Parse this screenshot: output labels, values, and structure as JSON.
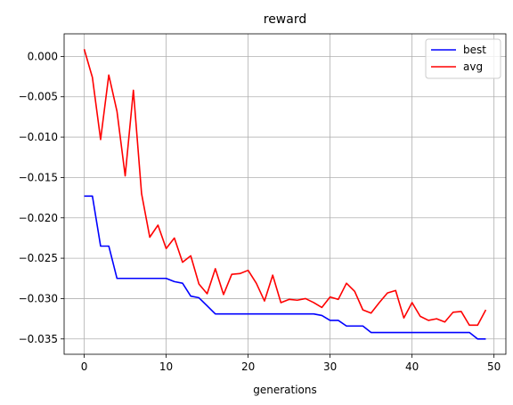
{
  "chart_data": {
    "type": "line",
    "title": "reward",
    "xlabel": "generations",
    "ylabel": "",
    "xlim": [
      -2.45,
      51.45
    ],
    "ylim": [
      -0.0369,
      0.0028
    ],
    "xticks": [
      0,
      10,
      20,
      30,
      40,
      50
    ],
    "yticks": [
      0.0,
      -0.005,
      -0.01,
      -0.015,
      -0.02,
      -0.025,
      -0.03,
      -0.035
    ],
    "ytick_labels": [
      "0.000",
      "−0.005",
      "−0.010",
      "−0.015",
      "−0.020",
      "−0.025",
      "−0.030",
      "−0.035"
    ],
    "grid": true,
    "legend_position": "top-right",
    "x": [
      0,
      1,
      2,
      3,
      4,
      5,
      6,
      7,
      8,
      9,
      10,
      11,
      12,
      13,
      14,
      15,
      16,
      17,
      18,
      19,
      20,
      21,
      22,
      23,
      24,
      25,
      26,
      27,
      28,
      29,
      30,
      31,
      32,
      33,
      34,
      35,
      36,
      37,
      38,
      39,
      40,
      41,
      42,
      43,
      44,
      45,
      46,
      47,
      48,
      49
    ],
    "series": [
      {
        "name": "best",
        "color": "#0000ff",
        "values": [
          -0.0173,
          -0.0173,
          -0.0235,
          -0.0235,
          -0.0275,
          -0.0275,
          -0.0275,
          -0.0275,
          -0.0275,
          -0.0275,
          -0.0275,
          -0.0279,
          -0.0281,
          -0.0297,
          -0.0299,
          -0.0309,
          -0.0319,
          -0.0319,
          -0.0319,
          -0.0319,
          -0.0319,
          -0.0319,
          -0.0319,
          -0.0319,
          -0.0319,
          -0.0319,
          -0.0319,
          -0.0319,
          -0.0319,
          -0.0321,
          -0.0327,
          -0.0327,
          -0.0334,
          -0.0334,
          -0.0334,
          -0.0342,
          -0.0342,
          -0.0342,
          -0.0342,
          -0.0342,
          -0.0342,
          -0.0342,
          -0.0342,
          -0.0342,
          -0.0342,
          -0.0342,
          -0.0342,
          -0.0342,
          -0.035,
          -0.035
        ]
      },
      {
        "name": "avg",
        "color": "#ff0000",
        "values": [
          0.0009,
          -0.0026,
          -0.0103,
          -0.0023,
          -0.0068,
          -0.0148,
          -0.0042,
          -0.017,
          -0.0224,
          -0.0209,
          -0.0238,
          -0.0225,
          -0.0255,
          -0.0247,
          -0.0282,
          -0.0294,
          -0.0263,
          -0.0295,
          -0.027,
          -0.0269,
          -0.0265,
          -0.0281,
          -0.0303,
          -0.0271,
          -0.0305,
          -0.0301,
          -0.0302,
          -0.03,
          -0.0305,
          -0.0311,
          -0.0298,
          -0.0301,
          -0.0281,
          -0.0291,
          -0.0314,
          -0.0318,
          -0.0305,
          -0.0293,
          -0.029,
          -0.0324,
          -0.0305,
          -0.0322,
          -0.0327,
          -0.0325,
          -0.0329,
          -0.0317,
          -0.0316,
          -0.0333,
          -0.0333,
          -0.0314
        ]
      }
    ]
  }
}
